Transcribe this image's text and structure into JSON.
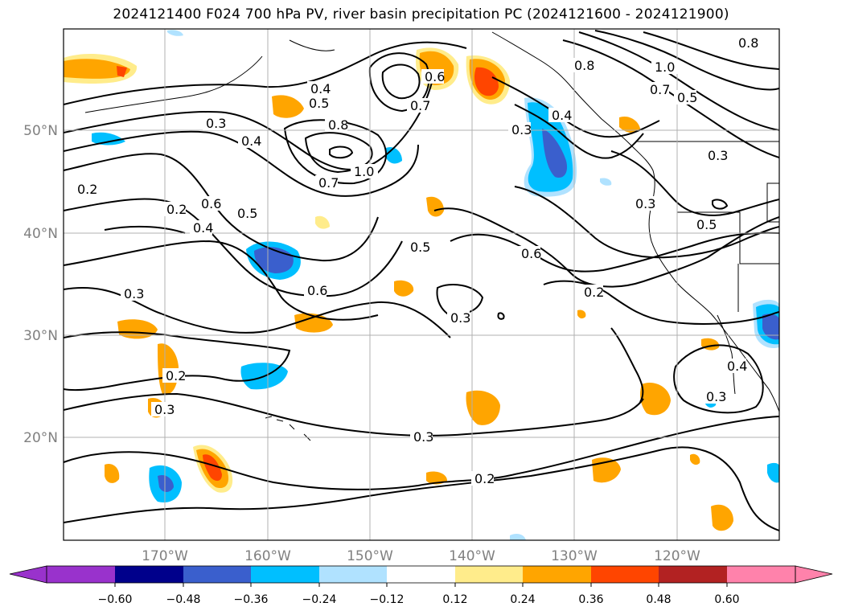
{
  "title": "2024121400 F024 700 hPa PV, river basin precipitation PC (2024121600 - 2024121900)",
  "map": {
    "lon_labels": [
      "170°W",
      "160°W",
      "150°W",
      "140°W",
      "130°W",
      "120°W"
    ],
    "lat_labels": [
      "50°N",
      "40°N",
      "30°N",
      "20°N"
    ],
    "contour_labels": [
      "0.2",
      "0.3",
      "0.4",
      "0.5",
      "0.6",
      "0.7",
      "0.8",
      "1.0"
    ],
    "grid": true
  },
  "colorbar": {
    "ticks": [
      "−0.60",
      "−0.48",
      "−0.36",
      "−0.24",
      "−0.12",
      "0.12",
      "0.24",
      "0.36",
      "0.48",
      "0.60"
    ],
    "colors": [
      "#9932cc",
      "#00008b",
      "#3a5fcd",
      "#00bfff",
      "#b0e2ff",
      "#ffffff",
      "#ffec8b",
      "#ffa500",
      "#ff4500",
      "#b22222",
      "#ff82ab"
    ],
    "extend": "both"
  },
  "palette": {
    "pos_weak": "#ffec8b",
    "pos_mid": "#ffa500",
    "pos_strong": "#ff4500",
    "neg_weak": "#b0e2ff",
    "neg_mid": "#00bfff",
    "neg_strong": "#3a5fcd"
  }
}
